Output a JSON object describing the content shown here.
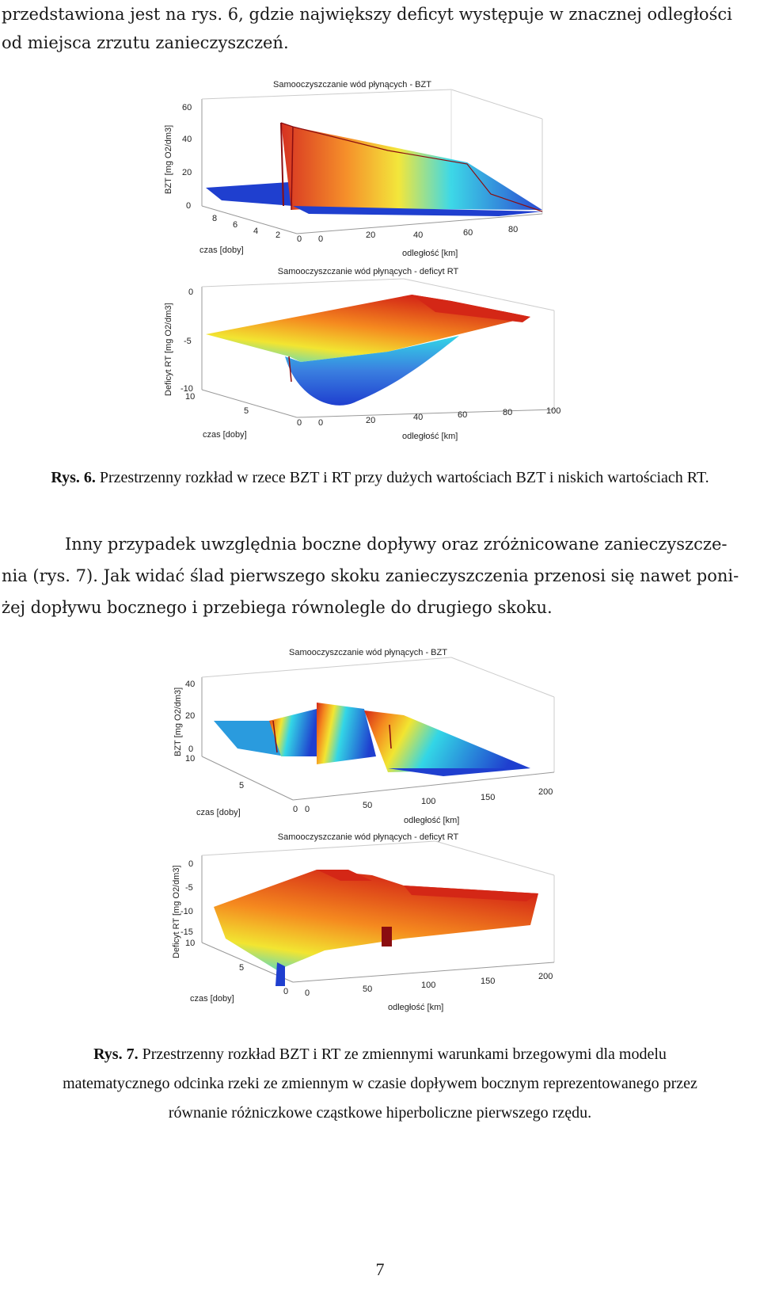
{
  "intro": {
    "line1": "przedstawiona jest na rys. 6, gdzie największy deficyt występuje w znacznej odległości",
    "line2": "od miejsca zrzutu zanieczyszczeń."
  },
  "figure6": {
    "bzt_plot": {
      "title": "Samooczyszczanie wód płynących - BZT",
      "zlabel": "BZT [mg O2/dm3]",
      "z_ticks": [
        "0",
        "20",
        "40",
        "60"
      ],
      "t_label": "czas [doby]",
      "t_ticks": [
        "2",
        "4",
        "6",
        "8"
      ],
      "x_label": "odległość [km]",
      "x_ticks": [
        "0",
        "20",
        "40",
        "60",
        "80"
      ],
      "t_zero": "0"
    },
    "rt_plot": {
      "title": "Samooczyszczanie wód płynących - deficyt RT",
      "zlabel": "Deficyt RT [mg O2/dm3]",
      "z_ticks": [
        "0",
        "-5",
        "-10"
      ],
      "t_label": "czas [doby]",
      "t_ticks": [
        "5",
        "10"
      ],
      "x_label": "odległość [km]",
      "x_ticks": [
        "0",
        "20",
        "40",
        "60",
        "80",
        "100"
      ],
      "t_zero": "0"
    },
    "caption_label": "Rys. 6.",
    "caption_text": "Przestrzenny rozkład w rzece BZT i RT przy dużych wartościach BZT i niskich wartościach RT."
  },
  "middle": {
    "line1": "Inny przypadek uwzględnia boczne dopływy oraz zróżnicowane zanieczyszcze-",
    "line2": "nia (rys. 7). Jak widać ślad pierwszego skoku zanieczyszczenia przenosi się nawet poni-",
    "line3": "żej dopływu bocznego i przebiega równolegle do drugiego skoku."
  },
  "figure7": {
    "bzt_plot": {
      "title": "Samooczyszczanie wód płynących - BZT",
      "zlabel": "BZT [mg O2/dm3]",
      "z_ticks": [
        "0",
        "20",
        "40"
      ],
      "t_label": "czas [doby]",
      "t_ticks": [
        "5",
        "10"
      ],
      "x_label": "odległość [km]",
      "x_ticks": [
        "0",
        "50",
        "100",
        "150",
        "200"
      ],
      "t_zero": "0"
    },
    "rt_plot": {
      "title": "Samooczyszczanie wód płynących - deficyt RT",
      "zlabel": "Deficyt RT [mg O2/dm3]",
      "z_ticks": [
        "0",
        "-5",
        "-10",
        "-15"
      ],
      "t_label": "czas [doby]",
      "t_ticks": [
        "5",
        "10"
      ],
      "x_label": "odległość [km]",
      "x_ticks": [
        "0",
        "50",
        "100",
        "150",
        "200"
      ],
      "t_zero": "0"
    },
    "caption_label": "Rys. 7.",
    "caption_line1": "Przestrzenny rozkład BZT i RT ze zmiennymi warunkami brzegowymi dla modelu",
    "caption_line2": "matematycznego odcinka rzeki ze zmiennym w czasie dopływem bocznym reprezentowanego przez",
    "caption_line3": "równanie różniczkowe cząstkowe hiperboliczne pierwszego rzędu."
  },
  "page_number": "7",
  "colors": {
    "blue": "#1f3fcf",
    "cyan": "#33d6e6",
    "yellow": "#f2e531",
    "orange": "#f58a1f",
    "red": "#d42716",
    "darkred": "#8a0d10"
  }
}
